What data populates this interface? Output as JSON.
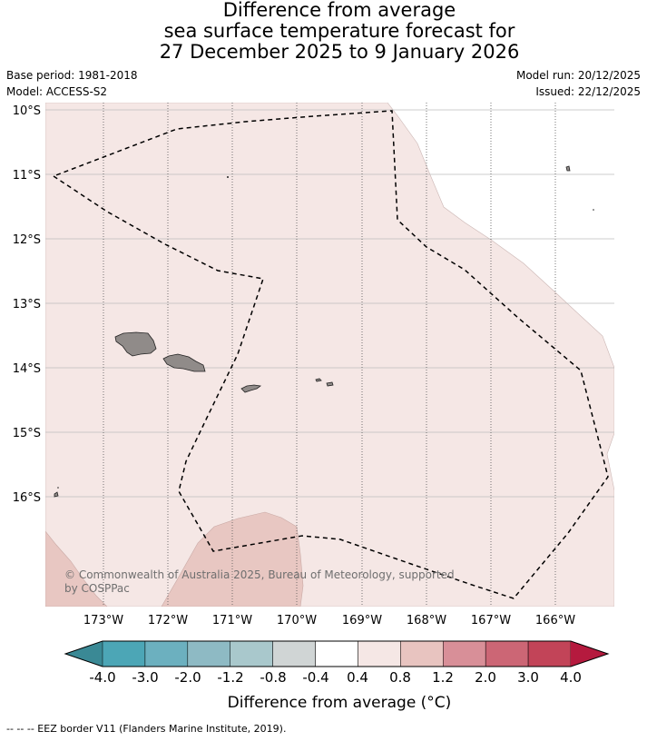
{
  "title": {
    "line1": "Difference from average",
    "line2": "sea surface temperature forecast for",
    "line3": "27 December 2025 to 9 January 2026"
  },
  "meta": {
    "base_period": "Base period: 1981-2018",
    "model": "Model: ACCESS-S2",
    "model_run": "Model run: 20/12/2025",
    "issued": "Issued: 22/12/2025"
  },
  "map": {
    "lat_labels": [
      "10°S",
      "11°S",
      "12°S",
      "13°S",
      "14°S",
      "15°S",
      "16°S"
    ],
    "lon_labels": [
      "173°W",
      "172°W",
      "171°W",
      "170°W",
      "169°W",
      "168°W",
      "167°W",
      "166°W"
    ],
    "background_anomaly_color": "#f5e7e5",
    "warm_patch_color": "#e8c7c2",
    "land_color": "#908b89",
    "outside_bounds_color": "#ffffff",
    "eez_line_style": "dashed"
  },
  "copyright": "© Commonwealth of Australia 2025, Bureau of Meteorology, supported by COSPPac",
  "colorbar": {
    "label": "Difference from average (°C)",
    "tick_labels": [
      "-4.0",
      "-3.0",
      "-2.0",
      "-1.2",
      "-0.8",
      "-0.4",
      "0.4",
      "0.8",
      "1.2",
      "2.0",
      "3.0",
      "4.0"
    ],
    "colors": [
      "#3a8995",
      "#4ca6b6",
      "#6cb0bf",
      "#8ebac4",
      "#a9c8cc",
      "#d0d5d5",
      "#ffffff",
      "#f5e7e5",
      "#e8c4c0",
      "#d88f98",
      "#cc6675",
      "#c24458",
      "#b51a3e"
    ]
  },
  "footnote": "-- -- -- EEZ border V11 (Flanders Marine Institute, 2019)."
}
